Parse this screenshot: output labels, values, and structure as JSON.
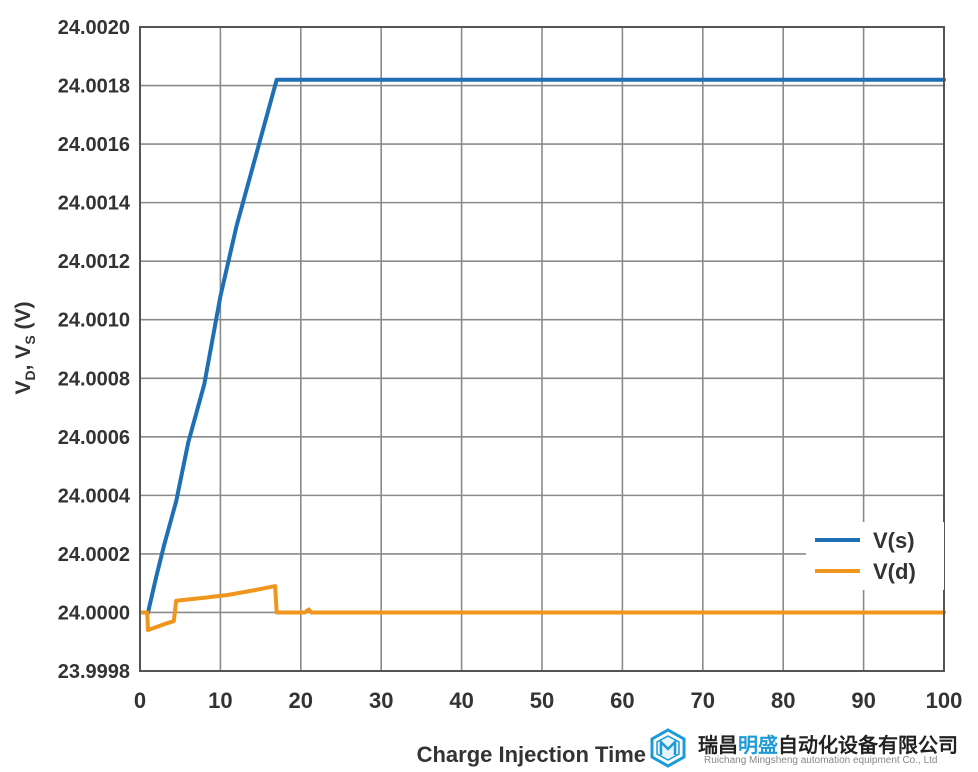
{
  "chart_data": {
    "type": "line",
    "xlabel": "Charge Injection Time",
    "ylabel": {
      "v1": "V",
      "sub1": "D",
      "sep": ", ",
      "v2": "V",
      "sub2": "S",
      "unit": " (V)"
    },
    "xlim": [
      0,
      100
    ],
    "ylim": [
      23.9998,
      24.002
    ],
    "x_ticks": [
      "0",
      "10",
      "20",
      "30",
      "40",
      "50",
      "60",
      "70",
      "80",
      "90",
      "100"
    ],
    "y_ticks": [
      "23.9998",
      "24.0000",
      "24.0002",
      "24.0004",
      "24.0006",
      "24.0008",
      "24.0010",
      "24.0012",
      "24.0014",
      "24.0016",
      "24.0018",
      "24.0020"
    ],
    "grid": true,
    "legend_position": "lower-right",
    "series": [
      {
        "name": "V(s)",
        "color": "#1f6fb5",
        "points": [
          [
            1,
            24.0
          ],
          [
            2,
            24.00012
          ],
          [
            3,
            24.00023
          ],
          [
            4.5,
            24.00038
          ],
          [
            6,
            24.00058
          ],
          [
            8,
            24.00078
          ],
          [
            10,
            24.00108
          ],
          [
            12,
            24.00132
          ],
          [
            14,
            24.00152
          ],
          [
            17,
            24.00182
          ],
          [
            100,
            24.00182
          ]
        ]
      },
      {
        "name": "V(d)",
        "color": "#f0961e",
        "points": [
          [
            0.3,
            24.0
          ],
          [
            0.9,
            24.0
          ],
          [
            1,
            23.99994
          ],
          [
            2,
            23.99995
          ],
          [
            3,
            23.99996
          ],
          [
            4.2,
            23.99997
          ],
          [
            4.5,
            24.00004
          ],
          [
            8,
            24.00005
          ],
          [
            11,
            24.00006
          ],
          [
            13,
            24.00007
          ],
          [
            15,
            24.00008
          ],
          [
            16.8,
            24.00009
          ],
          [
            17,
            24.0
          ],
          [
            20.5,
            24.0
          ],
          [
            21,
            24.00001
          ],
          [
            21.3,
            24.0
          ],
          [
            100,
            24.0
          ]
        ]
      }
    ]
  },
  "watermark": {
    "name_pre": "瑞昌",
    "name_hl": "明盛",
    "name_post": "自动化设备有限公司",
    "en": "Ruichang Mingsheng automation equipment Co., Ltd"
  }
}
